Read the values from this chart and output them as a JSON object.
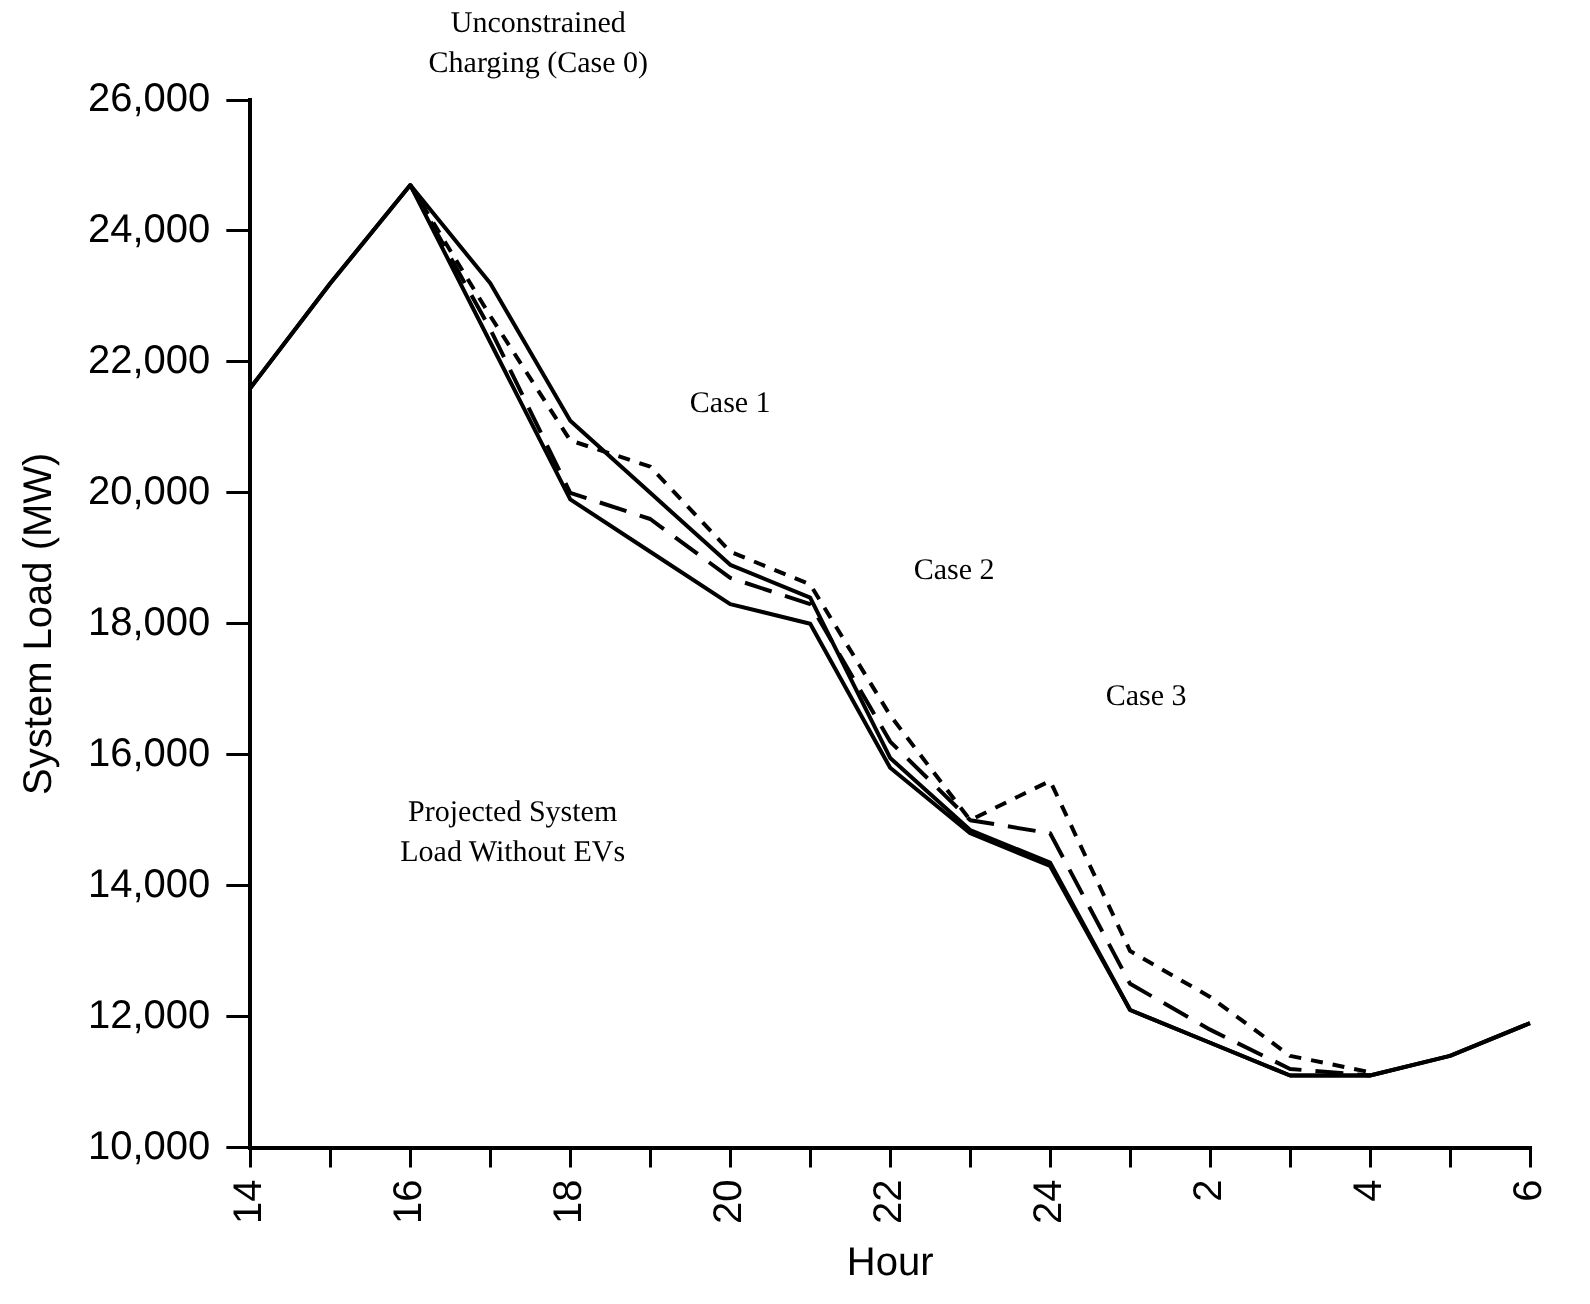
{
  "chart_data": {
    "type": "line",
    "xlabel": "Hour",
    "ylabel": "System Load (MW)",
    "categories": [
      "14",
      null,
      "16",
      null,
      "18",
      null,
      "20",
      null,
      "22",
      null,
      "24",
      null,
      "2",
      null,
      "4",
      null,
      "6"
    ],
    "series": [
      {
        "color": "#000000",
        "line_style": "solid",
        "values": [
          21600,
          23200,
          24700,
          22300,
          19900,
          19100,
          18300,
          18000,
          15800,
          14800,
          14300,
          12100,
          11600,
          11100,
          11100,
          11400,
          11900
        ]
      },
      {
        "color": "#000000",
        "line_style": "solid",
        "values": [
          21600,
          23200,
          24700,
          23200,
          21100,
          20000,
          18900,
          18400,
          15950,
          14850,
          14350,
          12100,
          11600,
          11100,
          11100,
          11400,
          11900
        ]
      },
      {
        "color": "#000000",
        "line_style": "dashed",
        "values": [
          null,
          null,
          24700,
          22500,
          20000,
          19600,
          18700,
          18300,
          16200,
          15000,
          14800,
          12500,
          11800,
          11200,
          11100,
          null,
          null
        ]
      },
      {
        "color": "#000000",
        "line_style": "dotted",
        "values": [
          null,
          null,
          24700,
          22700,
          20800,
          20400,
          19100,
          18600,
          16600,
          15000,
          15600,
          13000,
          12300,
          11400,
          11150,
          null,
          null
        ]
      }
    ],
    "ylim": [
      10000,
      26000
    ],
    "yticks": [
      {
        "value": 10000,
        "label": "10,000"
      },
      {
        "value": 12000,
        "label": "12,000"
      },
      {
        "value": 14000,
        "label": "14,000"
      },
      {
        "value": 16000,
        "label": "16,000"
      },
      {
        "value": 18000,
        "label": "18,000"
      },
      {
        "value": 20000,
        "label": "20,000"
      },
      {
        "value": 22000,
        "label": "22,000"
      },
      {
        "value": 24000,
        "label": "24,000"
      },
      {
        "value": 26000,
        "label": "26,000"
      }
    ],
    "grid": false,
    "legend": false,
    "marker": "none",
    "annotations": [
      "Unconstrained\nCharging (Case 0)",
      "Case 1",
      "Case 2",
      "Case 3",
      "Projected System\nLoad Without EVs"
    ]
  }
}
